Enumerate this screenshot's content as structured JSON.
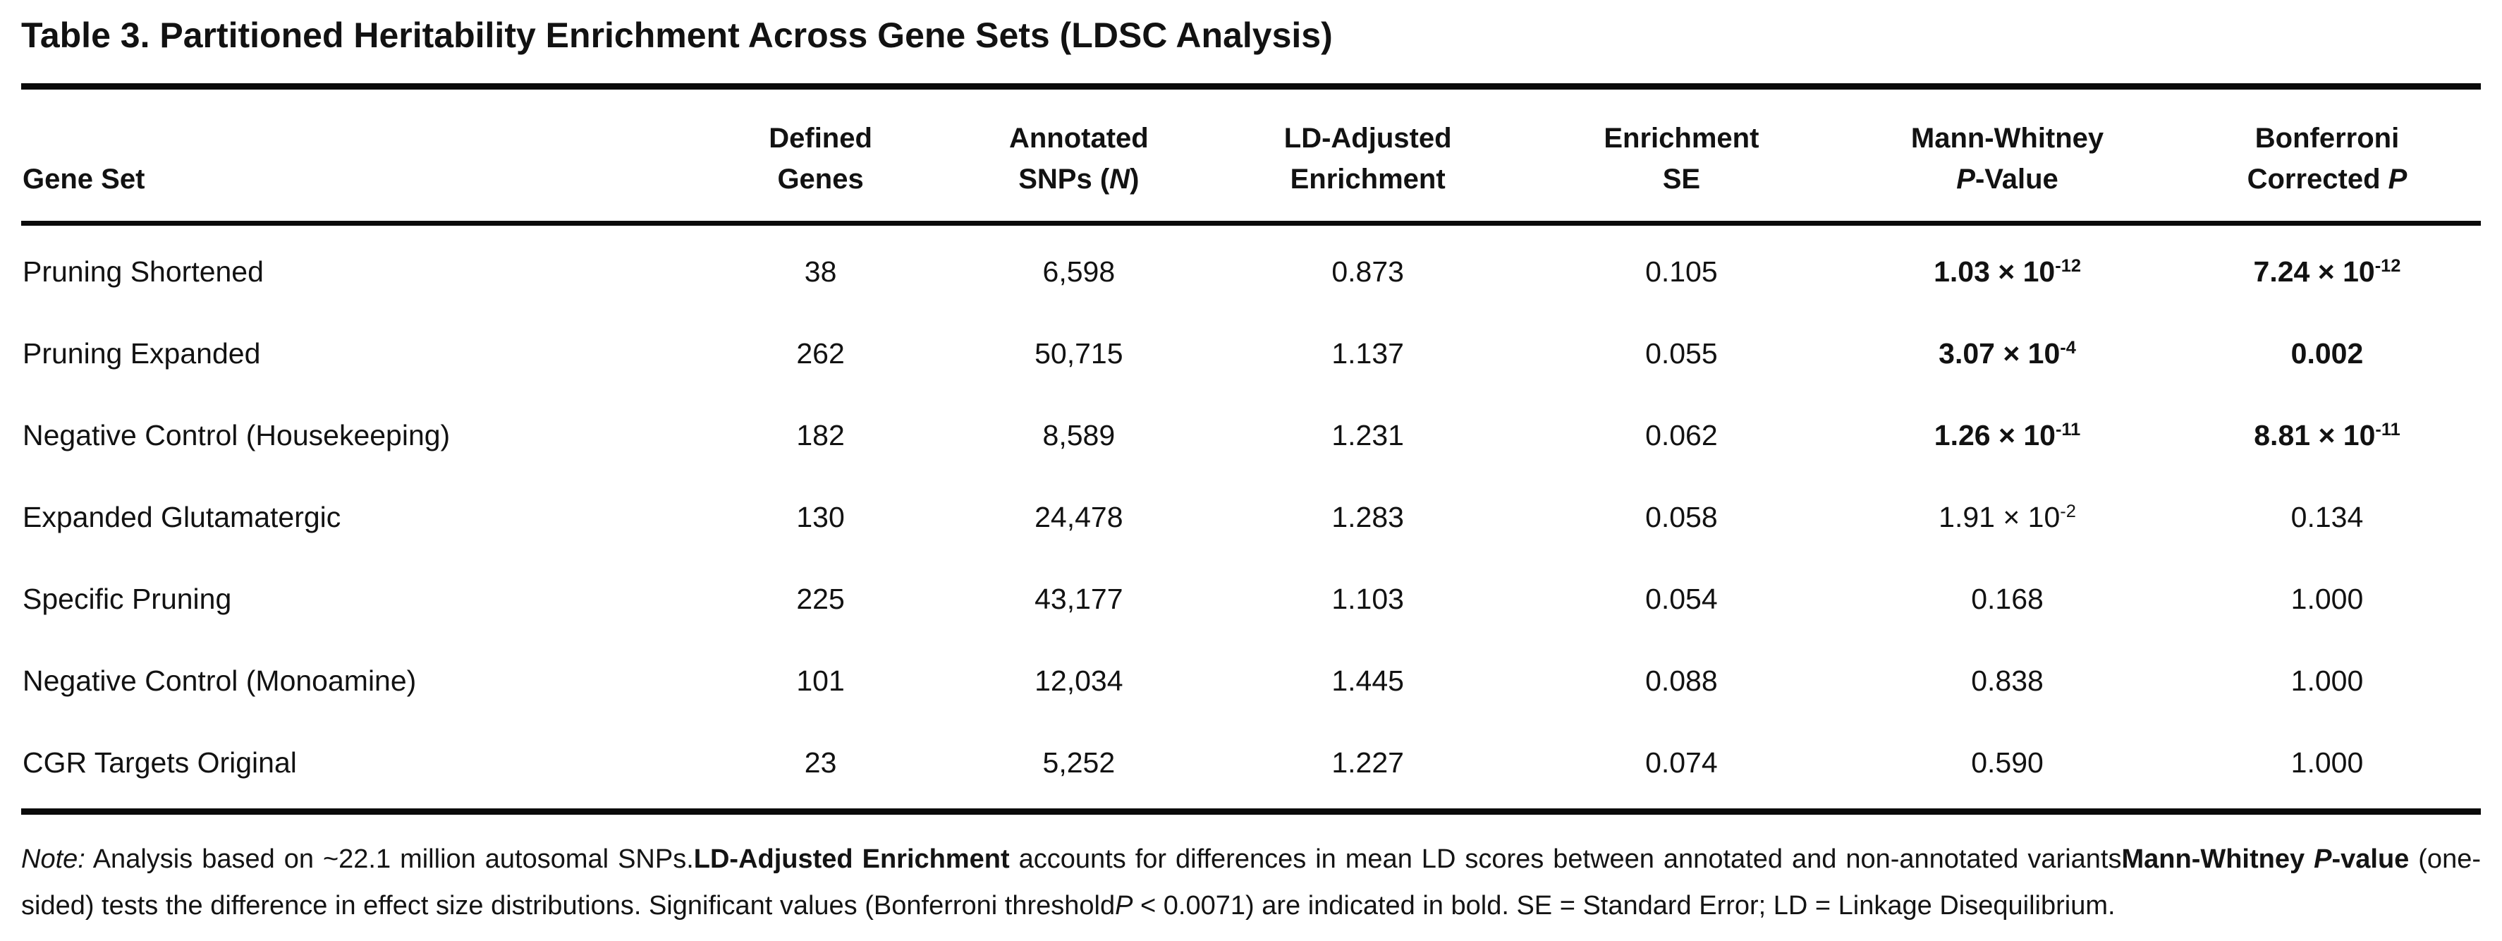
{
  "title": "Table 3. Partitioned Heritability Enrichment Across Gene Sets (LDSC Analysis)",
  "table": {
    "columns": {
      "gene_set": {
        "label": "Gene Set"
      },
      "defined_genes": {
        "line1": "Defined",
        "line2": "Genes"
      },
      "annotated_snps": {
        "line1": "Annotated",
        "line2_pre": "SNPs (",
        "line2_italic": "N",
        "line2_post": ")"
      },
      "ld_enrichment": {
        "line1": "LD-Adjusted",
        "line2": "Enrichment"
      },
      "enrichment_se": {
        "line1": "Enrichment",
        "line2": "SE"
      },
      "mw_p": {
        "line1": "Mann-Whitney",
        "line2_pre": "",
        "line2_italic": "P",
        "line2_post": "-Value"
      },
      "bonferroni_p": {
        "line1": "Bonferroni",
        "line2_pre": "Corrected ",
        "line2_italic": "P",
        "line2_post": ""
      }
    },
    "rows": [
      {
        "gene_set": "Pruning Shortened",
        "defined_genes": "38",
        "annotated_snps": "6,598",
        "ld_enrichment": "0.873",
        "enrichment_se": "0.105",
        "mw_p": {
          "base": "1.03 × 10",
          "exp": "-12",
          "bold": true
        },
        "bonferroni_p": {
          "base": "7.24 × 10",
          "exp": "-12",
          "bold": true
        }
      },
      {
        "gene_set": "Pruning Expanded",
        "defined_genes": "262",
        "annotated_snps": "50,715",
        "ld_enrichment": "1.137",
        "enrichment_se": "0.055",
        "mw_p": {
          "base": "3.07 × 10",
          "exp": "-4",
          "bold": true
        },
        "bonferroni_p": {
          "base": "0.002",
          "exp": "",
          "bold": true
        }
      },
      {
        "gene_set": "Negative Control (Housekeeping)",
        "defined_genes": "182",
        "annotated_snps": "8,589",
        "ld_enrichment": "1.231",
        "enrichment_se": "0.062",
        "mw_p": {
          "base": "1.26 × 10",
          "exp": "-11",
          "bold": true
        },
        "bonferroni_p": {
          "base": "8.81 × 10",
          "exp": "-11",
          "bold": true
        }
      },
      {
        "gene_set": "Expanded Glutamatergic",
        "defined_genes": "130",
        "annotated_snps": "24,478",
        "ld_enrichment": "1.283",
        "enrichment_se": "0.058",
        "mw_p": {
          "base": "1.91 × 10",
          "exp": "-2",
          "bold": false
        },
        "bonferroni_p": {
          "base": "0.134",
          "exp": "",
          "bold": false
        }
      },
      {
        "gene_set": "Specific Pruning",
        "defined_genes": "225",
        "annotated_snps": "43,177",
        "ld_enrichment": "1.103",
        "enrichment_se": "0.054",
        "mw_p": {
          "base": "0.168",
          "exp": "",
          "bold": false
        },
        "bonferroni_p": {
          "base": "1.000",
          "exp": "",
          "bold": false
        }
      },
      {
        "gene_set": "Negative Control (Monoamine)",
        "defined_genes": "101",
        "annotated_snps": "12,034",
        "ld_enrichment": "1.445",
        "enrichment_se": "0.088",
        "mw_p": {
          "base": "0.838",
          "exp": "",
          "bold": false
        },
        "bonferroni_p": {
          "base": "1.000",
          "exp": "",
          "bold": false
        }
      },
      {
        "gene_set": "CGR Targets Original",
        "defined_genes": "23",
        "annotated_snps": "5,252",
        "ld_enrichment": "1.227",
        "enrichment_se": "0.074",
        "mw_p": {
          "base": "0.590",
          "exp": "",
          "bold": false
        },
        "bonferroni_p": {
          "base": "1.000",
          "exp": "",
          "bold": false
        }
      }
    ]
  },
  "note": {
    "segments": [
      {
        "style": "italic",
        "text": "Note:"
      },
      {
        "style": "normal",
        "text": " Analysis based on ~22.1 million autosomal SNPs."
      },
      {
        "style": "bold",
        "text": "LD-Adjusted Enrichment"
      },
      {
        "style": "normal",
        "text": " accounts for differences in mean LD scores between annotated and non-annotated variants"
      },
      {
        "style": "bold",
        "text": "Mann-Whitney "
      },
      {
        "style": "bold-italic",
        "text": "P"
      },
      {
        "style": "bold",
        "text": "-value"
      },
      {
        "style": "normal",
        "text": " (one-sided) tests the difference in effect size distributions. Significant values (Bonferroni threshold"
      },
      {
        "style": "italic",
        "text": "P"
      },
      {
        "style": "normal",
        "text": " < 0.0071) are indicated in bold. SE = Standard Error; LD = Linkage Disequilibrium."
      }
    ]
  }
}
